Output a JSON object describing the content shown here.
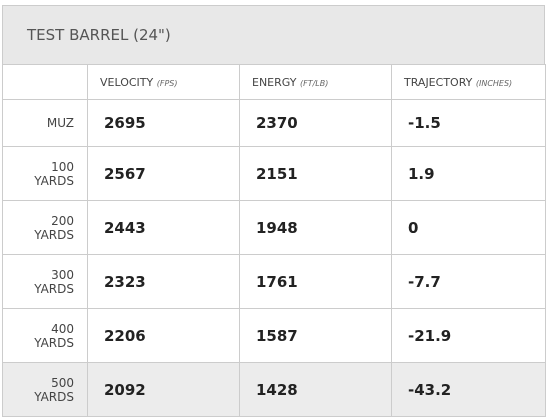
{
  "header": {
    "title": "TEST BARREL (24\")"
  },
  "table": {
    "columns": [
      {
        "label": "VELOCITY",
        "unit": "(FPS)"
      },
      {
        "label": "ENERGY",
        "unit": "(FT/LB)"
      },
      {
        "label": "TRAJECTORY",
        "unit": "(INCHES)"
      }
    ],
    "rows": [
      [
        "MUZ",
        2695,
        2370,
        -1.5
      ],
      [
        "100 YARDS",
        2567,
        2151,
        1.9
      ],
      [
        "200 YARDS",
        2443,
        1948,
        0
      ],
      [
        "300 YARDS",
        2323,
        1761,
        -7.7
      ],
      [
        "400 YARDS",
        2206,
        1587,
        -21.9
      ],
      [
        "500 YARDS",
        2092,
        1428,
        -43.2
      ]
    ]
  }
}
